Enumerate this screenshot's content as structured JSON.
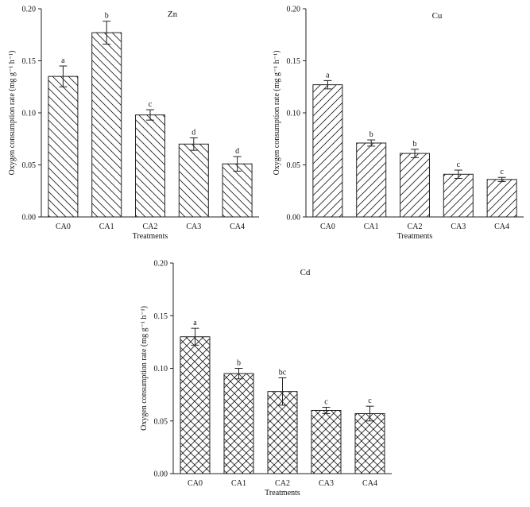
{
  "chart_data": [
    {
      "type": "bar",
      "title": "Zn",
      "xlabel": "Treatments",
      "ylabel": "Oxygen consumption rate (mg g⁻¹ h⁻¹)",
      "ylim": [
        0,
        0.2
      ],
      "yticks": [
        "0.00",
        "0.05",
        "0.10",
        "0.15",
        "0.20"
      ],
      "categories": [
        "CA0",
        "CA1",
        "CA2",
        "CA3",
        "CA4"
      ],
      "values": [
        0.135,
        0.177,
        0.098,
        0.07,
        0.051
      ],
      "errors": [
        0.01,
        0.011,
        0.005,
        0.006,
        0.007
      ],
      "labels": [
        "a",
        "b",
        "c",
        "d",
        "d"
      ],
      "pattern": "backslash"
    },
    {
      "type": "bar",
      "title": "Cu",
      "xlabel": "Treatments",
      "ylabel": "Oxygen consumption rate (mg g⁻¹ h⁻¹)",
      "ylim": [
        0,
        0.2
      ],
      "yticks": [
        "0.00",
        "0.05",
        "0.10",
        "0.15",
        "0.20"
      ],
      "categories": [
        "CA0",
        "CA1",
        "CA2",
        "CA3",
        "CA4"
      ],
      "values": [
        0.127,
        0.071,
        0.061,
        0.041,
        0.036
      ],
      "errors": [
        0.004,
        0.003,
        0.004,
        0.004,
        0.002
      ],
      "labels": [
        "a",
        "b",
        "b",
        "c",
        "c"
      ],
      "pattern": "slash"
    },
    {
      "type": "bar",
      "title": "Cd",
      "xlabel": "Treatments",
      "ylabel": "Oxygen consumption rate (mg g⁻¹ h⁻¹)",
      "ylim": [
        0,
        0.2
      ],
      "yticks": [
        "0.00",
        "0.05",
        "0.10",
        "0.15",
        "0.20"
      ],
      "categories": [
        "CA0",
        "CA1",
        "CA2",
        "CA3",
        "CA4"
      ],
      "values": [
        0.13,
        0.095,
        0.078,
        0.06,
        0.057
      ],
      "errors": [
        0.008,
        0.005,
        0.013,
        0.003,
        0.007
      ],
      "labels": [
        "a",
        "b",
        "bc",
        "c",
        "c"
      ],
      "pattern": "cross"
    }
  ]
}
